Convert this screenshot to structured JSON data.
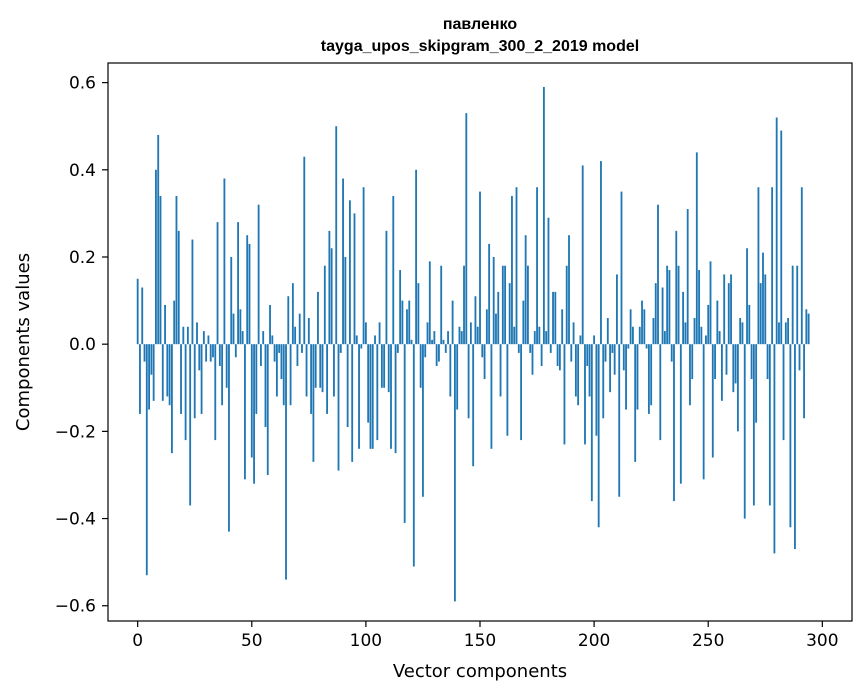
{
  "chart_data": {
    "type": "bar",
    "title_lines": [
      "павленко",
      "tayga_upos_skipgram_300_2_2019 model"
    ],
    "xlabel": "Vector components",
    "ylabel": "Components values",
    "xlim": [
      -13,
      313
    ],
    "ylim": [
      -0.635,
      0.645
    ],
    "xticks": [
      0,
      50,
      100,
      150,
      200,
      250,
      300
    ],
    "yticks": [
      -0.6,
      -0.4,
      -0.2,
      0.0,
      0.2,
      0.4,
      0.6
    ],
    "ytick_labels": [
      "−0.6",
      "−0.4",
      "−0.2",
      "0.0",
      "0.2",
      "0.4",
      "0.6"
    ],
    "bar_color": "#1f77b4",
    "values": [
      0.15,
      -0.16,
      0.13,
      -0.04,
      -0.53,
      -0.15,
      -0.07,
      -0.13,
      0.4,
      0.48,
      0.34,
      -0.13,
      0.09,
      -0.12,
      -0.14,
      -0.25,
      0.1,
      0.34,
      0.26,
      -0.16,
      0.04,
      -0.22,
      0.04,
      -0.37,
      0.24,
      -0.17,
      0.05,
      -0.06,
      -0.16,
      0.03,
      -0.04,
      0.02,
      -0.04,
      -0.03,
      -0.22,
      0.28,
      -0.05,
      -0.14,
      0.38,
      -0.1,
      -0.43,
      0.2,
      0.07,
      -0.03,
      0.28,
      0.08,
      0.03,
      -0.31,
      0.25,
      0.23,
      -0.26,
      -0.32,
      -0.16,
      0.32,
      -0.05,
      0.03,
      -0.19,
      -0.3,
      0.09,
      0.02,
      -0.04,
      -0.12,
      -0.02,
      -0.08,
      -0.14,
      -0.54,
      0.11,
      -0.14,
      0.14,
      0.04,
      -0.05,
      0.07,
      -0.02,
      0.43,
      -0.12,
      0.06,
      -0.16,
      -0.27,
      -0.1,
      0.12,
      -0.1,
      -0.11,
      0.18,
      -0.16,
      0.26,
      0.22,
      -0.12,
      0.5,
      -0.29,
      -0.02,
      0.38,
      0.2,
      -0.19,
      0.33,
      -0.27,
      0.3,
      0.02,
      -0.24,
      -0.01,
      0.36,
      0.05,
      -0.18,
      -0.24,
      -0.24,
      0.02,
      -0.22,
      0.05,
      -0.1,
      -0.1,
      0.26,
      -0.11,
      -0.24,
      0.34,
      -0.25,
      -0.02,
      0.17,
      0.1,
      -0.41,
      0.08,
      0.1,
      0.01,
      -0.51,
      0.4,
      0.14,
      -0.1,
      -0.35,
      -0.03,
      0.05,
      0.19,
      0.01,
      0.03,
      -0.05,
      -0.04,
      0.18,
      0.01,
      -0.02,
      0.03,
      -0.12,
      0.1,
      -0.59,
      -0.15,
      0.04,
      0.03,
      0.18,
      0.53,
      -0.17,
      0.05,
      -0.28,
      0.11,
      0.04,
      0.35,
      -0.03,
      -0.08,
      0.08,
      0.23,
      -0.24,
      0.2,
      0.07,
      0.12,
      -0.12,
      0.18,
      0.18,
      -0.21,
      0.14,
      0.34,
      0.04,
      0.36,
      -0.02,
      -0.22,
      0.1,
      0.25,
      0.18,
      -0.02,
      -0.07,
      0.03,
      0.36,
      0.04,
      -0.05,
      0.59,
      0.03,
      0.29,
      -0.02,
      0.12,
      0.12,
      -0.05,
      -0.06,
      0.08,
      -0.23,
      0.18,
      0.25,
      -0.04,
      0.05,
      -0.12,
      -0.14,
      0.02,
      0.41,
      -0.23,
      -0.05,
      -0.12,
      -0.36,
      0.02,
      -0.21,
      -0.42,
      0.42,
      -0.17,
      -0.04,
      0.06,
      -0.11,
      -0.02,
      -0.07,
      0.16,
      -0.35,
      0.35,
      -0.06,
      -0.15,
      -0.01,
      0.08,
      0.04,
      -0.27,
      -0.15,
      0.04,
      0.1,
      0.08,
      -0.01,
      -0.16,
      -0.14,
      0.06,
      0.14,
      0.32,
      -0.22,
      0.13,
      0.03,
      0.18,
      0.17,
      -0.04,
      -0.36,
      0.26,
      0.18,
      -0.32,
      0.12,
      0.05,
      0.31,
      -0.14,
      -0.08,
      0.06,
      0.44,
      0.17,
      0.04,
      -0.31,
      0.02,
      0.09,
      0.19,
      -0.26,
      -0.08,
      0.1,
      0.03,
      -0.13,
      0.16,
      -0.07,
      0.14,
      0.16,
      -0.11,
      -0.09,
      -0.2,
      0.06,
      0.05,
      -0.4,
      0.22,
      0.09,
      -0.08,
      -0.37,
      -0.18,
      0.36,
      0.14,
      0.21,
      0.16,
      -0.08,
      -0.37,
      0.36,
      -0.48,
      0.52,
      0.05,
      0.49,
      -0.22,
      0.05,
      0.06,
      -0.42,
      0.18,
      -0.47,
      0.18,
      -0.06,
      0.36,
      -0.17,
      0.08,
      0.07
    ]
  }
}
